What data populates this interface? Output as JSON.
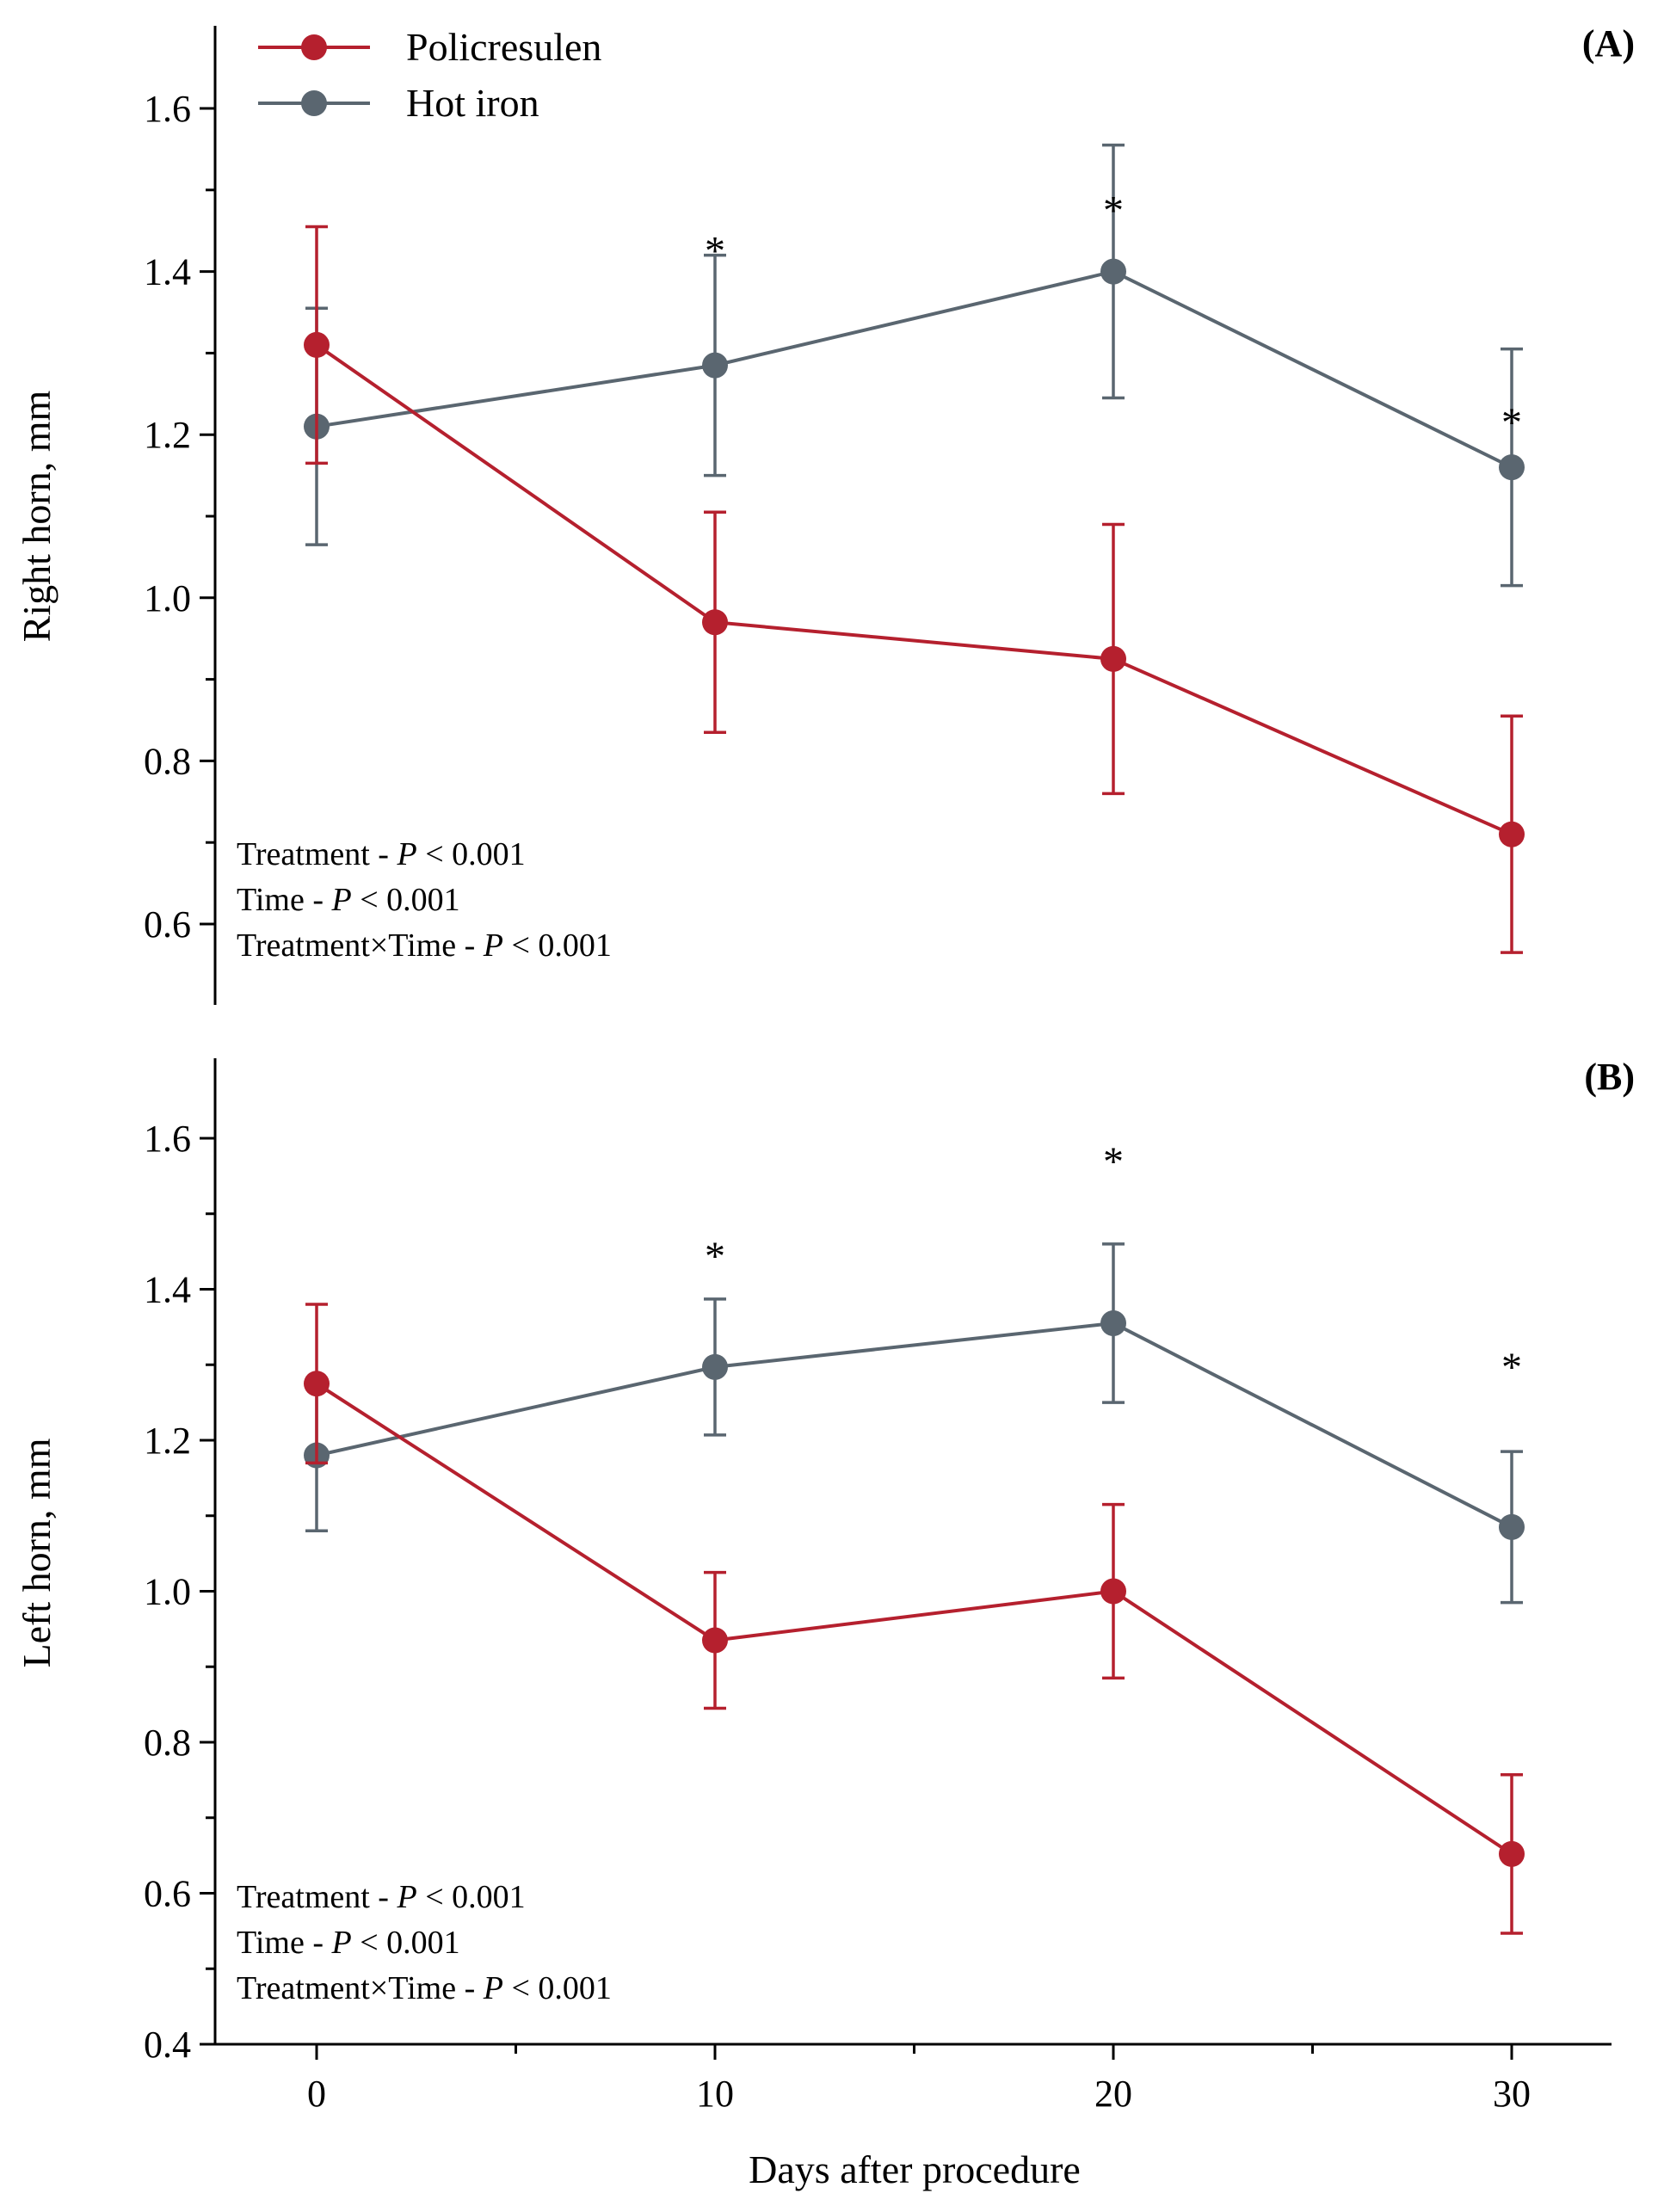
{
  "chart_data": {
    "type": "line",
    "x": [
      0,
      10,
      20,
      30
    ],
    "xlabel": "Days after procedure",
    "x_ticks": [
      "0",
      "10",
      "20",
      "30"
    ],
    "legend": {
      "placement": "top-left",
      "entries": [
        {
          "name": "Policresulen",
          "color": "#b5202e"
        },
        {
          "name": "Hot iron",
          "color": "#5a6670"
        }
      ]
    },
    "panels": [
      {
        "panel_label": "(A)",
        "ylabel": "Right horn, mm",
        "ylim": [
          0.5,
          1.7
        ],
        "y_ticks": [
          "0.6",
          "0.8",
          "1.0",
          "1.2",
          "1.4",
          "1.6"
        ],
        "y_tick_values": [
          0.6,
          0.8,
          1.0,
          1.2,
          1.4,
          1.6
        ],
        "series": [
          {
            "name": "Policresulen",
            "color": "#b5202e",
            "values": [
              1.31,
              0.97,
              0.925,
              0.71
            ],
            "errors": [
              0.145,
              0.135,
              0.165,
              0.145
            ]
          },
          {
            "name": "Hot iron",
            "color": "#5a6670",
            "values": [
              1.21,
              1.285,
              1.4,
              1.16
            ],
            "errors": [
              0.145,
              0.135,
              0.155,
              0.145
            ]
          }
        ],
        "significance": [
          {
            "x": 10,
            "y": 1.44,
            "label": "*"
          },
          {
            "x": 20,
            "y": 1.49,
            "label": "*"
          },
          {
            "x": 30,
            "y": 1.23,
            "label": "*"
          }
        ],
        "stats": [
          {
            "prefix": "Treatment - ",
            "p": "P",
            "suffix": " < 0.001"
          },
          {
            "prefix": "Time - ",
            "p": "P",
            "suffix": " < 0.001"
          },
          {
            "prefix": "Treatment×Time - ",
            "p": "P",
            "suffix": " < 0.001"
          }
        ]
      },
      {
        "panel_label": "(B)",
        "ylabel": "Left horn, mm",
        "ylim": [
          0.4,
          1.7
        ],
        "y_ticks": [
          "0.4",
          "0.6",
          "0.8",
          "1.0",
          "1.2",
          "1.4",
          "1.6"
        ],
        "y_tick_values": [
          0.4,
          0.6,
          0.8,
          1.0,
          1.2,
          1.4,
          1.6
        ],
        "series": [
          {
            "name": "Policresulen",
            "color": "#b5202e",
            "values": [
              1.275,
              0.935,
              1.0,
              0.652
            ],
            "errors": [
              0.105,
              0.09,
              0.115,
              0.105
            ]
          },
          {
            "name": "Hot iron",
            "color": "#5a6670",
            "values": [
              1.18,
              1.297,
              1.355,
              1.085
            ],
            "errors": [
              0.1,
              0.09,
              0.105,
              0.1
            ]
          }
        ],
        "significance": [
          {
            "x": 10,
            "y": 1.46,
            "label": "*"
          },
          {
            "x": 20,
            "y": 1.585,
            "label": "*"
          },
          {
            "x": 30,
            "y": 1.313,
            "label": "*"
          }
        ],
        "stats": [
          {
            "prefix": "Treatment - ",
            "p": "P",
            "suffix": " < 0.001"
          },
          {
            "prefix": "Time - ",
            "p": "P",
            "suffix": " < 0.001"
          },
          {
            "prefix": "Treatment×Time - ",
            "p": "P",
            "suffix": " < 0.001"
          }
        ]
      }
    ]
  }
}
